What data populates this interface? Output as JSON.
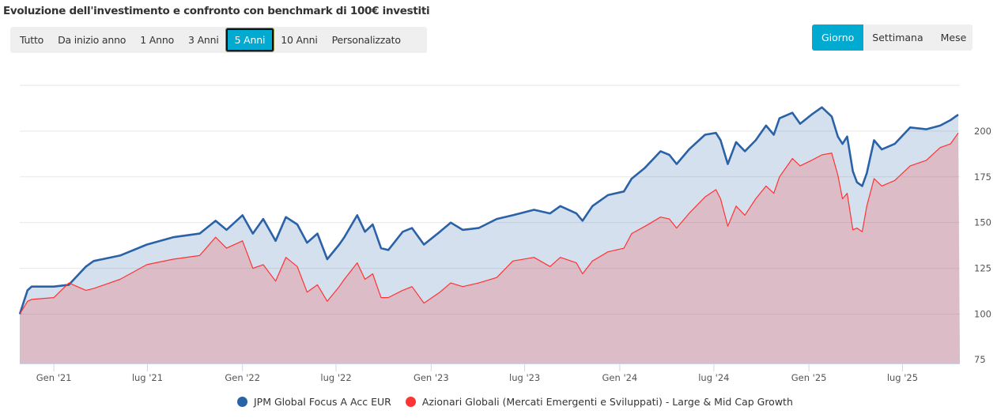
{
  "title": "Evoluzione dell'investimento e confronto con benchmark di 100€ investiti",
  "range_buttons": [
    {
      "label": "Tutto",
      "active": false
    },
    {
      "label": "Da inizio anno",
      "active": false
    },
    {
      "label": "1 Anno",
      "active": false
    },
    {
      "label": "3 Anni",
      "active": false
    },
    {
      "label": "5 Anni",
      "active": true
    },
    {
      "label": "10 Anni",
      "active": false
    },
    {
      "label": "Personalizzato",
      "active": false
    }
  ],
  "granularity_buttons": [
    {
      "label": "Giorno",
      "active": true
    },
    {
      "label": "Settimana",
      "active": false
    },
    {
      "label": "Mese",
      "active": false
    }
  ],
  "colors": {
    "accent": "#00aad0",
    "fund": "#2a62a8",
    "benchmark": "#ff3333",
    "fund_fill": "#d5e0ee",
    "benchmark_fill": "#dcbcc6"
  },
  "chart_data": {
    "type": "area",
    "title": "",
    "xlabel": "",
    "ylabel": "",
    "xlim": [
      "2020-10-27",
      "2025-10-20"
    ],
    "ylim": [
      73,
      225
    ],
    "grid": true,
    "legend_position": "bottom",
    "x_ticks": [
      {
        "date": "2021-01-01",
        "label": "Gen '21"
      },
      {
        "date": "2021-07-01",
        "label": "lug '21"
      },
      {
        "date": "2022-01-01",
        "label": "Gen '22"
      },
      {
        "date": "2022-07-01",
        "label": "lug '22"
      },
      {
        "date": "2023-01-01",
        "label": "Gen '23"
      },
      {
        "date": "2023-07-01",
        "label": "lug '23"
      },
      {
        "date": "2024-01-01",
        "label": "Gen '24"
      },
      {
        "date": "2024-07-01",
        "label": "lug '24"
      },
      {
        "date": "2025-01-01",
        "label": "Gen '25"
      },
      {
        "date": "2025-07-01",
        "label": "lug '25"
      }
    ],
    "y_ticks": [
      75,
      100,
      125,
      150,
      175,
      200,
      225
    ],
    "y_tick_labels": [
      "75",
      "100",
      "125",
      "150",
      "175",
      "200",
      ""
    ],
    "x": [
      "2020-10-27",
      "2020-11-11",
      "2020-11-19",
      "2021-01-01",
      "2021-01-30",
      "2021-03-04",
      "2021-03-19",
      "2021-05-09",
      "2021-06-30",
      "2021-08-20",
      "2021-10-10",
      "2021-11-10",
      "2021-12-01",
      "2022-01-01",
      "2022-01-21",
      "2022-02-10",
      "2022-03-06",
      "2022-03-26",
      "2022-04-17",
      "2022-05-06",
      "2022-05-26",
      "2022-06-14",
      "2022-07-07",
      "2022-07-17",
      "2022-08-11",
      "2022-08-26",
      "2022-09-10",
      "2022-09-26",
      "2022-10-10",
      "2022-11-07",
      "2022-11-25",
      "2022-12-18",
      "2023-01-18",
      "2023-02-08",
      "2023-03-03",
      "2023-04-03",
      "2023-05-08",
      "2023-06-08",
      "2023-07-19",
      "2023-08-19",
      "2023-09-08",
      "2023-10-09",
      "2023-10-21",
      "2023-11-09",
      "2023-12-09",
      "2024-01-09",
      "2024-01-24",
      "2024-02-19",
      "2024-03-20",
      "2024-04-06",
      "2024-04-20",
      "2024-05-14",
      "2024-06-14",
      "2024-07-05",
      "2024-07-14",
      "2024-07-28",
      "2024-08-13",
      "2024-08-30",
      "2024-09-20",
      "2024-10-10",
      "2024-10-25",
      "2024-11-05",
      "2024-11-30",
      "2024-12-15",
      "2025-01-06",
      "2025-01-26",
      "2025-02-14",
      "2025-02-26",
      "2025-03-07",
      "2025-03-16",
      "2025-03-27",
      "2025-04-04",
      "2025-04-14",
      "2025-04-23",
      "2025-05-07",
      "2025-05-22",
      "2025-06-16",
      "2025-07-16",
      "2025-08-16",
      "2025-09-12",
      "2025-10-02",
      "2025-10-17"
    ],
    "series": [
      {
        "name": "JPM Global Focus A Acc EUR",
        "values": [
          100,
          113,
          115,
          115,
          116,
          126,
          129,
          132,
          138,
          142,
          144,
          151,
          146,
          154,
          144,
          152,
          140,
          153,
          149,
          139,
          144,
          130,
          138,
          142,
          154,
          145,
          149,
          136,
          135,
          145,
          147,
          138,
          145,
          150,
          146,
          147,
          152,
          154,
          157,
          155,
          159,
          155,
          151,
          159,
          165,
          167,
          174,
          180,
          189,
          187,
          182,
          190,
          198,
          199,
          195,
          182,
          194,
          189,
          195,
          203,
          198,
          207,
          210,
          204,
          209,
          213,
          208,
          197,
          193,
          197,
          178,
          172,
          170,
          177,
          195,
          190,
          193,
          202,
          201,
          203,
          206,
          209
        ]
      },
      {
        "name": "Azionari Globali (Mercati Emergenti e Sviluppati) - Large & Mid Cap Growth",
        "values": [
          100,
          107,
          108,
          109,
          117,
          113,
          114,
          119,
          127,
          130,
          132,
          142,
          136,
          140,
          125,
          127,
          118,
          131,
          126,
          112,
          116,
          107,
          115,
          119,
          128,
          119,
          122,
          109,
          109,
          113,
          115,
          106,
          112,
          117,
          115,
          117,
          120,
          129,
          131,
          126,
          131,
          128,
          122,
          129,
          134,
          136,
          144,
          148,
          153,
          152,
          147,
          155,
          164,
          168,
          163,
          148,
          159,
          154,
          163,
          170,
          166,
          175,
          185,
          181,
          184,
          187,
          188,
          176,
          163,
          166,
          146,
          147,
          145,
          159,
          174,
          170,
          173,
          181,
          184,
          191,
          193,
          199
        ]
      }
    ]
  }
}
